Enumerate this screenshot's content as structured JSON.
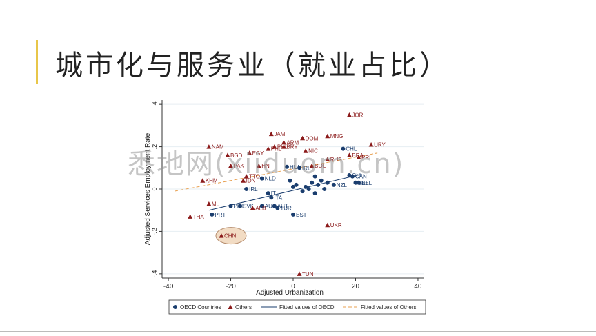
{
  "slide": {
    "title": "城市化与服务业（就业占比）",
    "watermark": "悉地网(xiiduom.cn)",
    "accent_color": "#e8c64a"
  },
  "chart_data": {
    "type": "scatter",
    "xlabel": "Adjusted Urbanization",
    "ylabel": "Adjusted Services Employment Rate",
    "xlim": [
      -42,
      42
    ],
    "ylim": [
      -0.42,
      0.42
    ],
    "xticks": [
      -40,
      -20,
      0,
      20,
      40
    ],
    "yticks": [
      -0.4,
      -0.2,
      0,
      0.2,
      0.4
    ],
    "xtick_labels": [
      "-40",
      "-20",
      "0",
      "20",
      "40"
    ],
    "ytick_labels": [
      "-.4",
      "-.2",
      "0",
      ".2",
      ".4"
    ],
    "grid": true,
    "legend_position": "bottom",
    "legend": [
      "OECD Countries",
      "Others",
      "Fitted values of OECD",
      "Fitted values of Others"
    ],
    "colors": {
      "oecd": "#1a3d6e",
      "others": "#8b1a1a",
      "fit_oecd": "#1a3d6e",
      "fit_others": "#e8a050",
      "highlight": "#f2dcc4"
    },
    "highlight_label": "CHN",
    "series": [
      {
        "name": "OECD Countries",
        "marker": "circle",
        "points": [
          {
            "x": 16,
            "y": 0.19,
            "label": "CHL"
          },
          {
            "x": 18,
            "y": 0.065,
            "label": "CHL"
          },
          {
            "x": 19,
            "y": 0.06,
            "label": "CAN"
          },
          {
            "x": 21,
            "y": 0.03,
            "label": "BEL"
          },
          {
            "x": 20,
            "y": 0.03,
            "label": "BEL"
          },
          {
            "x": -2,
            "y": 0.105,
            "label": "HUN"
          },
          {
            "x": 2,
            "y": 0.1,
            "label": "IRL"
          },
          {
            "x": 7,
            "y": 0.06,
            "label": ""
          },
          {
            "x": 9,
            "y": 0.04,
            "label": ""
          },
          {
            "x": 11,
            "y": 0.03,
            "label": ""
          },
          {
            "x": 8,
            "y": 0.02,
            "label": ""
          },
          {
            "x": 6,
            "y": 0.03,
            "label": ""
          },
          {
            "x": 4,
            "y": 0.01,
            "label": ""
          },
          {
            "x": 5,
            "y": 0.0,
            "label": ""
          },
          {
            "x": 3,
            "y": -0.01,
            "label": ""
          },
          {
            "x": 7,
            "y": -0.02,
            "label": ""
          },
          {
            "x": 1,
            "y": 0.02,
            "label": ""
          },
          {
            "x": 0,
            "y": 0.01,
            "label": ""
          },
          {
            "x": -1,
            "y": 0.04,
            "label": ""
          },
          {
            "x": 10,
            "y": 0.0,
            "label": ""
          },
          {
            "x": 13,
            "y": 0.02,
            "label": "NZL"
          },
          {
            "x": -10,
            "y": 0.05,
            "label": "NLD"
          },
          {
            "x": -15,
            "y": 0.0,
            "label": "IRL"
          },
          {
            "x": -8,
            "y": -0.02,
            "label": "IT"
          },
          {
            "x": -7,
            "y": -0.04,
            "label": "ITA"
          },
          {
            "x": -6,
            "y": -0.08,
            "label": "AUT"
          },
          {
            "x": -10,
            "y": -0.08,
            "label": "AUT"
          },
          {
            "x": -17,
            "y": -0.08,
            "label": "SVK"
          },
          {
            "x": -20,
            "y": -0.08,
            "label": "PRT"
          },
          {
            "x": -26,
            "y": -0.12,
            "label": "PRT"
          },
          {
            "x": -5,
            "y": -0.09,
            "label": "TUR"
          },
          {
            "x": 0,
            "y": -0.12,
            "label": "EST"
          }
        ]
      },
      {
        "name": "Others",
        "marker": "triangle",
        "points": [
          {
            "x": 18,
            "y": 0.35,
            "label": "JOR"
          },
          {
            "x": 25,
            "y": 0.21,
            "label": "URY"
          },
          {
            "x": 11,
            "y": 0.25,
            "label": "MNG"
          },
          {
            "x": 3,
            "y": 0.24,
            "label": "DOM"
          },
          {
            "x": -7,
            "y": 0.26,
            "label": "JAM"
          },
          {
            "x": -27,
            "y": 0.2,
            "label": "NAM"
          },
          {
            "x": -21,
            "y": 0.16,
            "label": "BGD"
          },
          {
            "x": -14,
            "y": 0.17,
            "label": "EGY"
          },
          {
            "x": -8,
            "y": 0.19,
            "label": "PHL"
          },
          {
            "x": -3,
            "y": 0.2,
            "label": "BRY"
          },
          {
            "x": -6,
            "y": 0.2,
            "label": "PHL"
          },
          {
            "x": -3,
            "y": 0.22,
            "label": "ARM"
          },
          {
            "x": 4,
            "y": 0.18,
            "label": "NIC"
          },
          {
            "x": 11,
            "y": 0.14,
            "label": "RUS"
          },
          {
            "x": 18,
            "y": 0.16,
            "label": "BRA"
          },
          {
            "x": 21,
            "y": 0.15,
            "label": "PRI"
          },
          {
            "x": 6,
            "y": 0.11,
            "label": "BOL"
          },
          {
            "x": -20,
            "y": 0.11,
            "label": "PAK"
          },
          {
            "x": -11,
            "y": 0.11,
            "label": "HN"
          },
          {
            "x": -15,
            "y": 0.06,
            "label": "TTO"
          },
          {
            "x": -16,
            "y": 0.04,
            "label": "IDN"
          },
          {
            "x": -29,
            "y": 0.04,
            "label": "KHM"
          },
          {
            "x": -27,
            "y": -0.07,
            "label": "ML"
          },
          {
            "x": -13,
            "y": -0.09,
            "label": "ALB"
          },
          {
            "x": -33,
            "y": -0.13,
            "label": "THA"
          },
          {
            "x": -23,
            "y": -0.22,
            "label": "CHN"
          },
          {
            "x": 11,
            "y": -0.17,
            "label": "UKR"
          },
          {
            "x": 2,
            "y": -0.4,
            "label": "TUN"
          }
        ]
      }
    ],
    "fits": [
      {
        "name": "Fitted values of OECD",
        "x": [
          -27,
          22
        ],
        "y": [
          -0.1,
          0.07
        ]
      },
      {
        "name": "Fitted values of Others",
        "x": [
          -38,
          27
        ],
        "y": [
          -0.01,
          0.17
        ]
      }
    ]
  }
}
